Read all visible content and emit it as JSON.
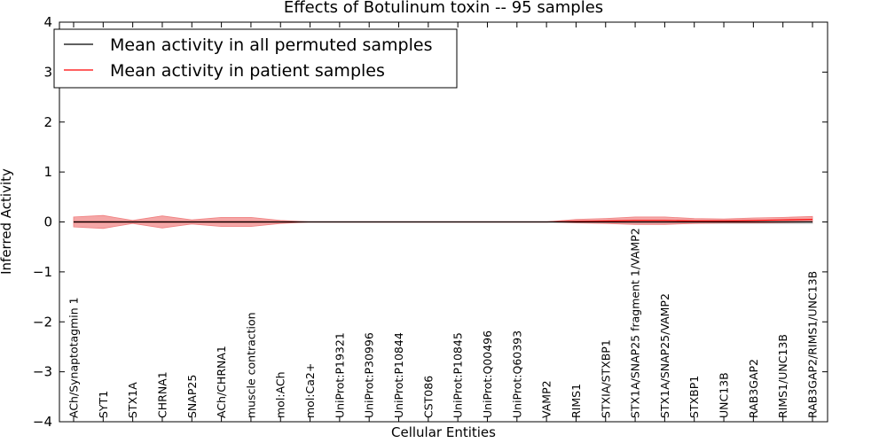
{
  "chart_data": {
    "type": "line",
    "title": "Effects of Botulinum toxin -- 95 samples",
    "xlabel": "Cellular Entities",
    "ylabel": "Inferred Activity",
    "ylim": [
      -4,
      4
    ],
    "yticks": [
      {
        "value": -4,
        "label": "−4"
      },
      {
        "value": -3,
        "label": "−3"
      },
      {
        "value": -2,
        "label": "−2"
      },
      {
        "value": -1,
        "label": "−1"
      },
      {
        "value": 0,
        "label": "0"
      },
      {
        "value": 1,
        "label": "1"
      },
      {
        "value": 2,
        "label": "2"
      },
      {
        "value": 3,
        "label": "3"
      },
      {
        "value": 4,
        "label": "4"
      }
    ],
    "categories": [
      "ACh/Synaptotagmin 1",
      "SYT1",
      "STX1A",
      "CHRNA1",
      "SNAP25",
      "ACh/CHRNA1",
      "muscle contraction",
      "mol:ACh",
      "mol:Ca2+",
      "UniProt:P19321",
      "UniProt:P30996",
      "UniProt:P10844",
      "CST086",
      "UniProt:P10845",
      "UniProt:Q00496",
      "UniProt:Q60393",
      "VAMP2",
      "RIMS1",
      "STXIA/STXBP1",
      "STX1A/SNAP25 fragment 1/VAMP2",
      "STX1A/SNAP25/VAMP2",
      "STXBP1",
      "UNC13B",
      "RAB3GAP2",
      "RIMS1/UNC13B",
      "RAB3GAP2/RIMS1/UNC13B"
    ],
    "legend_position": "top-left",
    "series": [
      {
        "name": "Mean activity in all permuted samples",
        "color": "#000000",
        "values": [
          0.0,
          0.0,
          0.0,
          0.0,
          0.0,
          0.0,
          0.0,
          0.0,
          0.0,
          0.0,
          0.0,
          0.0,
          0.0,
          0.0,
          0.0,
          0.0,
          0.0,
          0.0,
          0.0,
          0.0,
          0.0,
          0.0,
          0.0,
          0.0,
          0.0,
          0.0
        ],
        "band_color": "#bfbfbf",
        "band_upper": [
          0.02,
          0.02,
          0.01,
          0.02,
          0.01,
          0.02,
          0.02,
          0.01,
          0.0,
          0.0,
          0.0,
          0.0,
          0.0,
          0.0,
          0.0,
          0.0,
          0.0,
          0.01,
          0.02,
          0.03,
          0.03,
          0.03,
          0.03,
          0.03,
          0.03,
          0.03
        ],
        "band_lower": [
          -0.02,
          -0.02,
          -0.01,
          -0.02,
          -0.01,
          -0.02,
          -0.02,
          -0.01,
          0.0,
          0.0,
          0.0,
          0.0,
          0.0,
          0.0,
          0.0,
          0.0,
          0.0,
          -0.01,
          -0.02,
          -0.03,
          -0.03,
          -0.03,
          -0.03,
          -0.03,
          -0.03,
          -0.03
        ]
      },
      {
        "name": "Mean activity in patient samples",
        "color": "#ff0000",
        "values": [
          0.0,
          0.0,
          0.0,
          0.0,
          0.0,
          0.0,
          0.0,
          0.0,
          0.0,
          0.0,
          0.0,
          0.0,
          0.0,
          0.0,
          0.0,
          0.0,
          0.0,
          0.01,
          0.02,
          0.03,
          0.03,
          0.02,
          0.02,
          0.03,
          0.04,
          0.05
        ],
        "band_color": "#f08080",
        "band_upper": [
          0.1,
          0.13,
          0.03,
          0.12,
          0.04,
          0.09,
          0.09,
          0.03,
          0.0,
          0.0,
          0.0,
          0.0,
          0.0,
          0.0,
          0.0,
          0.0,
          0.0,
          0.05,
          0.07,
          0.1,
          0.1,
          0.07,
          0.06,
          0.08,
          0.09,
          0.11
        ],
        "band_lower": [
          -0.1,
          -0.13,
          -0.03,
          -0.12,
          -0.04,
          -0.09,
          -0.09,
          -0.03,
          0.0,
          0.0,
          0.0,
          0.0,
          0.0,
          0.0,
          0.0,
          0.0,
          0.0,
          -0.02,
          -0.03,
          -0.05,
          -0.05,
          -0.03,
          -0.02,
          -0.02,
          -0.01,
          0.0
        ]
      }
    ]
  }
}
